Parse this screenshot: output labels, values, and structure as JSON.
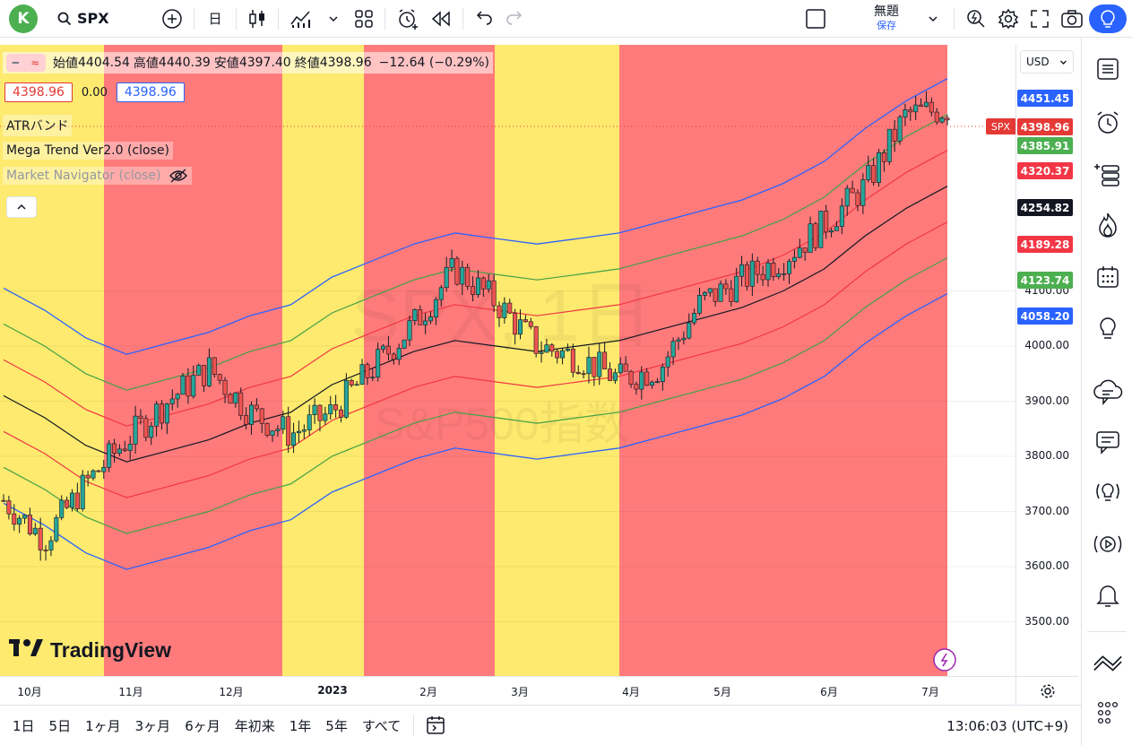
{
  "toolbar": {
    "avatar_letter": "K",
    "symbol": "SPX",
    "interval": "日",
    "layout_title": "無題",
    "layout_status": "保存"
  },
  "legend": {
    "open_label": "始値",
    "open": "4404.54",
    "high_label": "高値",
    "high": "4440.39",
    "low_label": "安値",
    "low": "4397.40",
    "close_label": "終値",
    "close": "4398.96",
    "change": "−12.64 (−0.29%)",
    "bid": "4398.96",
    "spread": "0.00",
    "ask": "4398.96",
    "indicators": [
      "ATRバンド",
      "Mega Trend Ver2.0 (close)",
      "Market Navigator (close)"
    ]
  },
  "watermark": {
    "symbol": "SPX, 1日",
    "name": "S&P500指数"
  },
  "price_scale": {
    "currency": "USD",
    "ticks": [
      "4100.00",
      "4000.00",
      "3900.00",
      "3800.00",
      "3700.00",
      "3600.00",
      "3500.00"
    ],
    "badges": [
      {
        "label": "4451.45",
        "color": "#2962ff"
      },
      {
        "label": "4398.96",
        "color": "#e53935",
        "tag": "SPX"
      },
      {
        "label": "4385.91",
        "color": "#4caf50"
      },
      {
        "label": "4320.37",
        "color": "#f23645"
      },
      {
        "label": "4254.82",
        "color": "#131722"
      },
      {
        "label": "4189.28",
        "color": "#f23645"
      },
      {
        "label": "4123.74",
        "color": "#4caf50"
      },
      {
        "label": "4058.20",
        "color": "#2962ff"
      }
    ]
  },
  "time_axis": [
    "10月",
    "11月",
    "12月",
    "2023",
    "2月",
    "3月",
    "4月",
    "5月",
    "6月",
    "7月"
  ],
  "ranges": [
    "1日",
    "5日",
    "1ヶ月",
    "3ヶ月",
    "6ヶ月",
    "年初来",
    "1年",
    "5年",
    "すべて"
  ],
  "clock": "13:06:03 (UTC+9)",
  "brand": "TradingView",
  "colors": {
    "bg_red": "#ff7b7b",
    "bg_yellow": "#fdea6e",
    "up": "#26a69a",
    "down": "#ef5350",
    "band_blue": "#2962ff",
    "band_green": "#43a047",
    "band_red": "#f23645",
    "midline": "#131722"
  },
  "chart_data": {
    "type": "line",
    "title": "",
    "y_ticks": [
      3500,
      3600,
      3700,
      3800,
      3900,
      4000,
      4100
    ],
    "x_ticks": [
      "10月",
      "11月",
      "12月",
      "2023",
      "2月",
      "3月",
      "4月",
      "5月",
      "6月",
      "7月"
    ],
    "regimes": [
      {
        "from": "10月",
        "to": "11月",
        "color": "yellow"
      },
      {
        "from": "11月",
        "to": "12月下旬",
        "color": "red"
      },
      {
        "from": "12月下旬",
        "to": "1月上旬",
        "color": "yellow"
      },
      {
        "from": "1月上旬",
        "to": "2月下旬",
        "color": "red"
      },
      {
        "from": "2月下旬",
        "to": "3月下旬",
        "color": "yellow"
      },
      {
        "from": "3月下旬",
        "to": "7月",
        "color": "red"
      }
    ],
    "series": [
      {
        "values": [
          3720,
          3650,
          3750,
          3830,
          3900,
          3960,
          3880,
          3840,
          3880,
          3960,
          4040,
          4140,
          4080,
          4000,
          3980,
          3940,
          3960,
          4080,
          4120,
          4160,
          4220,
          4290,
          4420,
          4430
        ]
      },
      {
        "values": [
          3910,
          3870,
          3820,
          3790,
          3810,
          3830,
          3860,
          3880,
          3930,
          3960,
          3990,
          4010,
          4000,
          3990,
          4000,
          4010,
          4030,
          4050,
          4070,
          4100,
          4140,
          4200,
          4250,
          4290
        ]
      }
    ],
    "last_close": 4398.96
  }
}
